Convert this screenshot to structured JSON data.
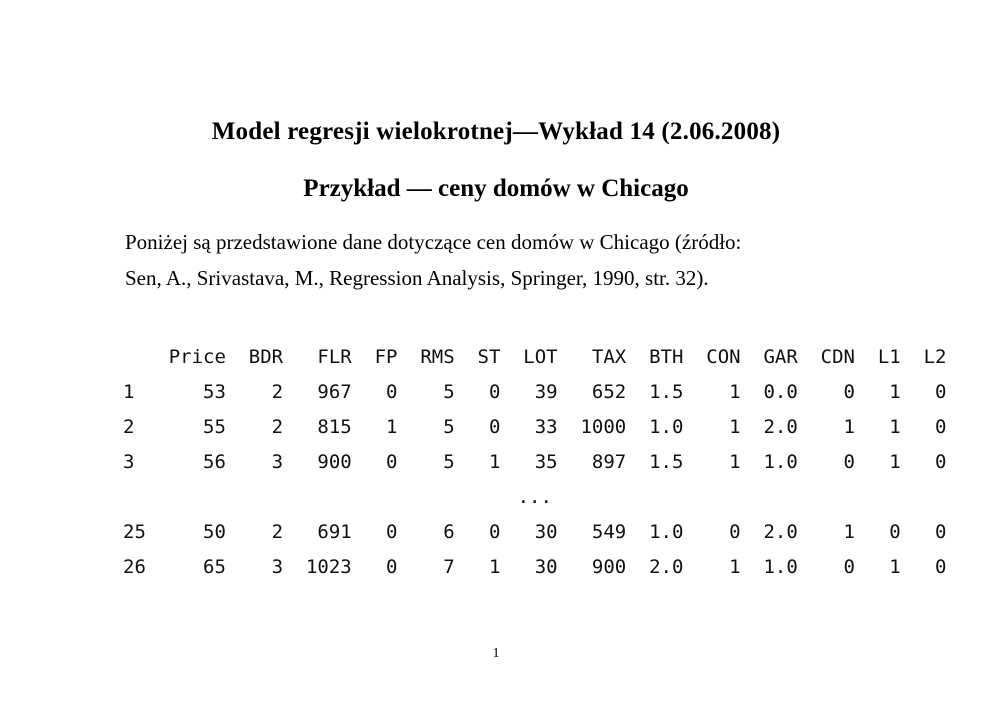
{
  "titles": {
    "main": "Model regresji wielokrotnej—Wykład 14 (2.06.2008)",
    "subtitle": "Przykład — ceny domów w Chicago"
  },
  "paragraph": {
    "line1": "Poniżej są przedstawione dane dotyczące cen domów w Chicago (źródło:",
    "line2": "Sen, A., Srivastava, M., Regression Analysis, Springer, 1990, str. 32)."
  },
  "table": {
    "columns": [
      "",
      "Price",
      "BDR",
      "FLR",
      "FP",
      "RMS",
      "ST",
      "LOT",
      "TAX",
      "BTH",
      "CON",
      "GAR",
      "CDN",
      "L1",
      "L2"
    ],
    "rows_head": [
      [
        "1",
        "53",
        "2",
        "967",
        "0",
        "5",
        "0",
        "39",
        "652",
        "1.5",
        "1",
        "0.0",
        "0",
        "1",
        "0"
      ],
      [
        "2",
        "55",
        "2",
        "815",
        "1",
        "5",
        "0",
        "33",
        "1000",
        "1.0",
        "1",
        "2.0",
        "1",
        "1",
        "0"
      ],
      [
        "3",
        "56",
        "3",
        "900",
        "0",
        "5",
        "1",
        "35",
        "897",
        "1.5",
        "1",
        "1.0",
        "0",
        "1",
        "0"
      ]
    ],
    "ellipsis": "...",
    "rows_tail": [
      [
        "25",
        "50",
        "2",
        "691",
        "0",
        "6",
        "0",
        "30",
        "549",
        "1.0",
        "0",
        "2.0",
        "1",
        "0",
        "0"
      ],
      [
        "26",
        "65",
        "3",
        "1023",
        "0",
        "7",
        "1",
        "30",
        "900",
        "2.0",
        "1",
        "1.0",
        "0",
        "1",
        "0"
      ]
    ]
  },
  "footer": {
    "page_number": "1"
  }
}
